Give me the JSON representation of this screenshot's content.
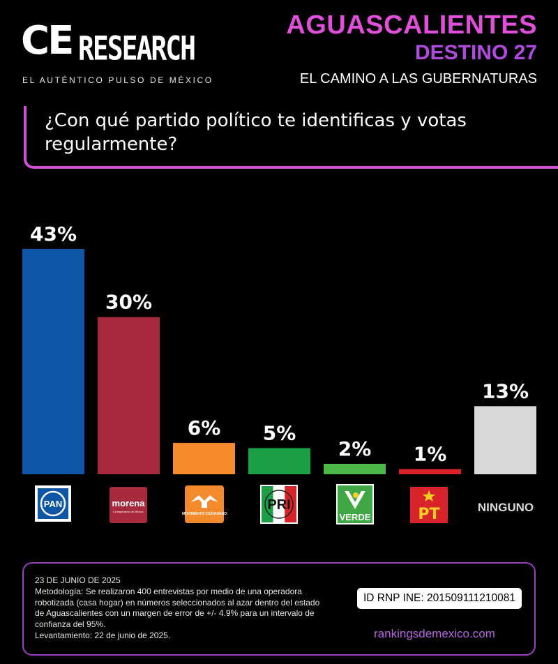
{
  "header": {
    "logo_ce": "CE",
    "logo_research": "RESEARCH",
    "logo_tagline": "EL AUTÉNTICO PULSO DE MÉXICO",
    "state": "AGUASCALIENTES",
    "destino": "DESTINO 27",
    "subtitle": "EL CAMINO A LAS GUBERNATURAS"
  },
  "question": "¿Con qué partido político te identificas y votas regularmente?",
  "chart_data": {
    "type": "bar",
    "categories": [
      "PAN",
      "morena",
      "MOVIMIENTO CIUDADANO",
      "PRI",
      "VERDE",
      "PT",
      "NINGUNO"
    ],
    "values": [
      43,
      30,
      6,
      5,
      2,
      1,
      13
    ],
    "value_labels": [
      "43%",
      "30%",
      "6%",
      "5%",
      "2%",
      "1%",
      "13%"
    ],
    "colors": [
      "#0d56a6",
      "#a62a3b",
      "#f58a2c",
      "#1a9e46",
      "#4bb848",
      "#d8232a",
      "#d9d9d9"
    ],
    "ylim": [
      0,
      43
    ],
    "grid": false,
    "legend": "none"
  },
  "logos": {
    "pan": "PAN",
    "morena": "morena",
    "morena_sub": "La esperanza de México",
    "mc": "MOVIMIENTO CIUDADANO",
    "pri": "PRI",
    "verde": "VERDE",
    "pt": "PT",
    "ninguno": "NINGUNO"
  },
  "footer": {
    "date": "23 DE JUNIO DE 2025",
    "methodology": "Metodología: Se realizaron 400 entrevistas por medio de una operadora robotizada (casa hogar) en números seleccionados al azar dentro del estado de Aguascalientes con un margen de error de +/- 4.9% para un intervalo de confianza del 95%.",
    "levantamiento": "Levantamiento: 22 de junio de 2025.",
    "rnp": "ID RNP INE: 201509111210081",
    "site": "rankingsdemexico.com"
  }
}
